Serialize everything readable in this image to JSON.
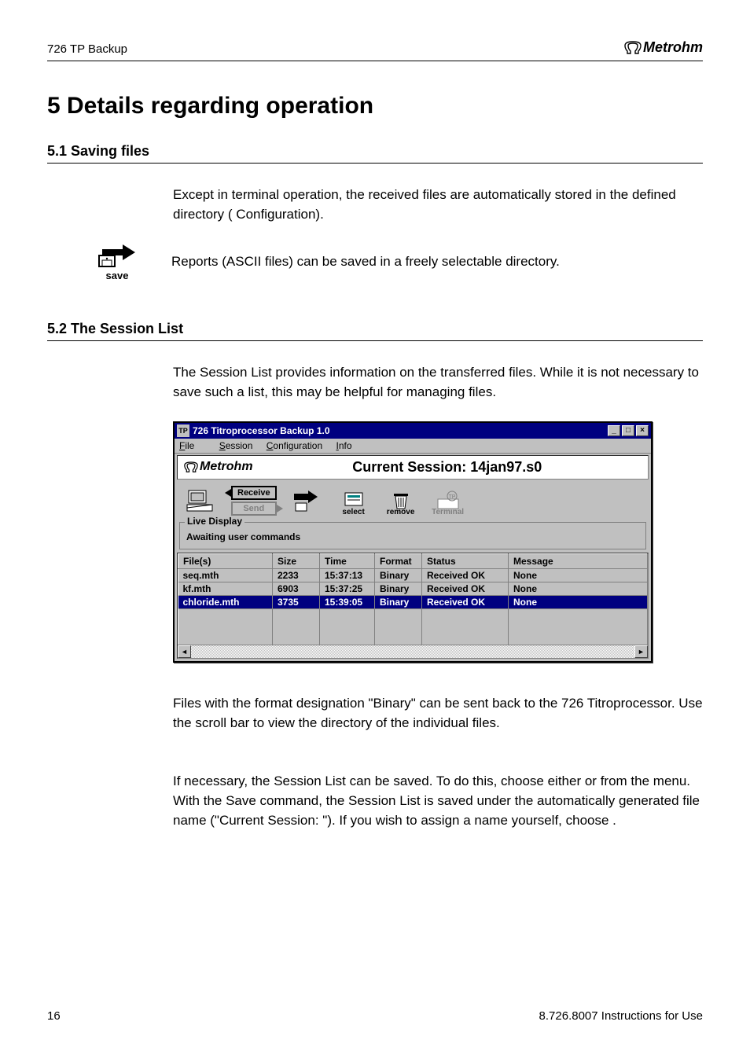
{
  "header": {
    "left": "726 TP Backup",
    "brand": "Metrohm"
  },
  "h1": "5 Details regarding operation",
  "sec51": {
    "heading": "5.1  Saving files",
    "para1_a": "Except in terminal operation, the received files are automatically stored in the defined directory (",
    "para1_b": "   Configuration).",
    "save_label": "save",
    "para2": "Reports (ASCII files) can be saved in a freely selectable directory."
  },
  "sec52": {
    "heading": "5.2  The Session List",
    "para1": "The Session List provides information on the transferred files. While it is not necessary to save such a list, this may be helpful for managing files."
  },
  "window": {
    "title": "726 Titroprocessor Backup 1.0",
    "menu": {
      "file": "File",
      "session": "Session",
      "configuration": "Configuration",
      "info": "Info"
    },
    "brand": "Metrohm",
    "current_session": "Current Session: 14jan97.s0",
    "toolbar": {
      "receive": "Receive",
      "send": "Send",
      "select": "select",
      "remove": "remove",
      "terminal": "Terminal"
    },
    "live": {
      "legend": "Live Display",
      "status": "Awaiting user commands"
    },
    "columns": [
      "File(s)",
      "Size",
      "Time",
      "Format",
      "Status",
      "Message"
    ],
    "rows": [
      {
        "file": "seq.mth",
        "size": "2233",
        "time": "15:37:13",
        "format": "Binary",
        "status": "Received OK",
        "message": "None",
        "selected": false
      },
      {
        "file": "kf.mth",
        "size": "6903",
        "time": "15:37:25",
        "format": "Binary",
        "status": "Received OK",
        "message": "None",
        "selected": false
      },
      {
        "file": "chloride.mth",
        "size": "3735",
        "time": "15:39:05",
        "format": "Binary",
        "status": "Received OK",
        "message": "None",
        "selected": true
      }
    ]
  },
  "after1": "Files with the format designation \"Binary\" can be sent back to the 726 Titroprocessor. Use the scroll bar to view the directory of the individual files.",
  "after2_a": "If necessary, the Session List can be saved. To do this, choose either ",
  "after2_b": " or ",
  "after2_c": " from the ",
  "after2_d": " menu.  With the Save command, the Session List is saved under the automatically generated file name (\"Current Session:   \"). If you wish to assign a name yourself, choose ",
  "after2_e": ".",
  "footer": {
    "page": "16",
    "right": "8.726.8007 Instructions for Use"
  }
}
